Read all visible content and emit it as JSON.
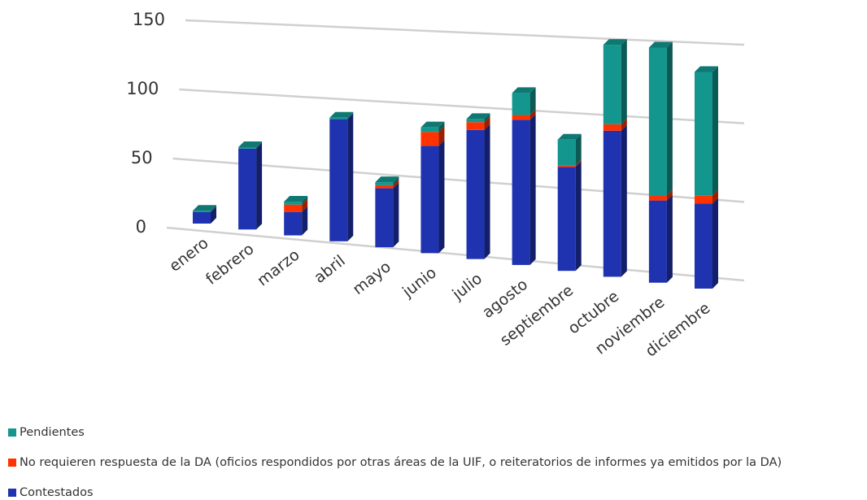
{
  "chart_data": {
    "type": "bar3d_stacked",
    "categories": [
      "enero",
      "febrero",
      "marzo",
      "abril",
      "mayo",
      "junio",
      "julio",
      "agosto",
      "septiembre",
      "octubre",
      "noviembre",
      "diciembre"
    ],
    "series": [
      {
        "name": "Contestados",
        "color": "#1f33b0",
        "values": [
          8,
          56,
          16,
          82,
          39,
          70,
          83,
          92,
          65,
          90,
          50,
          51
        ]
      },
      {
        "name": "No requieren respuesta de la DA (oficios respondidos por otras áreas de la UIF, o reiteratorios de informes ya emitidos por la DA)",
        "color": "#ff3300",
        "values": [
          0,
          0,
          5,
          0,
          2,
          9,
          5,
          3,
          1,
          4,
          3,
          5
        ]
      },
      {
        "name": "Pendientes",
        "color": "#13968e",
        "values": [
          1,
          1,
          2,
          1,
          2,
          3,
          2,
          14,
          16,
          49,
          90,
          74
        ]
      }
    ],
    "ylim": [
      0,
      150
    ],
    "yticks": [
      0,
      50,
      100,
      150
    ],
    "grid": true,
    "stacked": true
  }
}
